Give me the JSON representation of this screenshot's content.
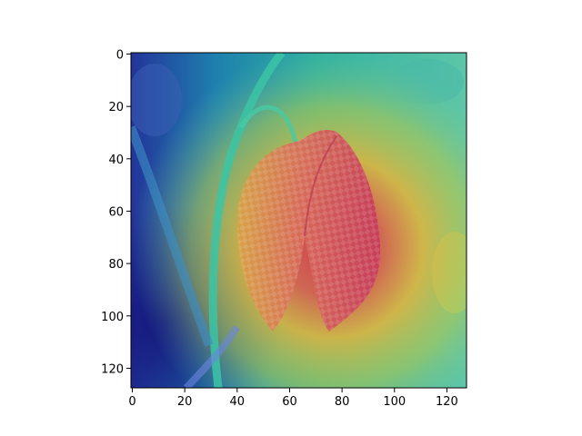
{
  "figure": {
    "image": {
      "description": "heatmap overlay",
      "data_extent": {
        "x": [
          0,
          128
        ],
        "y": [
          0,
          128
        ]
      }
    },
    "x_axis": {
      "ticks": [
        0,
        20,
        40,
        60,
        80,
        100,
        120
      ]
    },
    "y_axis": {
      "ticks": [
        0,
        20,
        40,
        60,
        80,
        100,
        120
      ],
      "inverted": true
    }
  },
  "colors": {
    "background": "#ffffff",
    "axis": "#000000",
    "heat_low": "#1a1a9a",
    "heat_mid": "#2bb3a0",
    "heat_high": "#e6b43a",
    "heat_peak": "#d8364e"
  }
}
